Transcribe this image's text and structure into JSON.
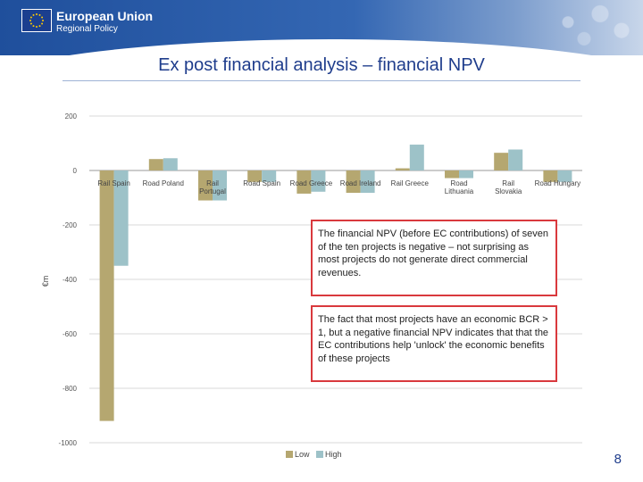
{
  "header": {
    "brand_name": "European Union",
    "brand_sub": "Regional Policy",
    "flag_icon": "eu-flag-icon",
    "colors": {
      "brand_blue": "#1f4f9c",
      "star_yellow": "#ffcc00"
    }
  },
  "slide": {
    "title": "Ex post financial analysis – financial NPV",
    "page_number": "8"
  },
  "callouts": [
    {
      "text": "The financial NPV (before EC contributions) of seven of the ten projects is negative – not surprising as most projects do not generate direct commercial revenues."
    },
    {
      "text": "The fact that most projects have an economic BCR > 1, but a negative financial NPV indicates that that the EC contributions help 'unlock' the economic benefits of these projects"
    }
  ],
  "chart_data": {
    "type": "bar",
    "ylabel": "€m",
    "ylim": [
      -1000,
      200
    ],
    "yticks": [
      200,
      0,
      -200,
      -400,
      -600,
      -800,
      -1000
    ],
    "grid": true,
    "legend_position": "bottom",
    "categories": [
      "Rail Spain",
      "Road Poland",
      "Rail Portugal",
      "Road Spain",
      "Road Greece",
      "Road Ireland",
      "Rail Greece",
      "Road Lithuania",
      "Rail Slovakia",
      "Road Hungary"
    ],
    "series": [
      {
        "name": "Low",
        "color": "#b5a770",
        "values": [
          -920,
          42,
          -110,
          -42,
          -85,
          -82,
          8,
          -28,
          65,
          -42
        ]
      },
      {
        "name": "High",
        "color": "#9dc2c8",
        "values": [
          -350,
          45,
          -110,
          -42,
          -78,
          -82,
          95,
          -28,
          77,
          -42
        ]
      }
    ]
  }
}
